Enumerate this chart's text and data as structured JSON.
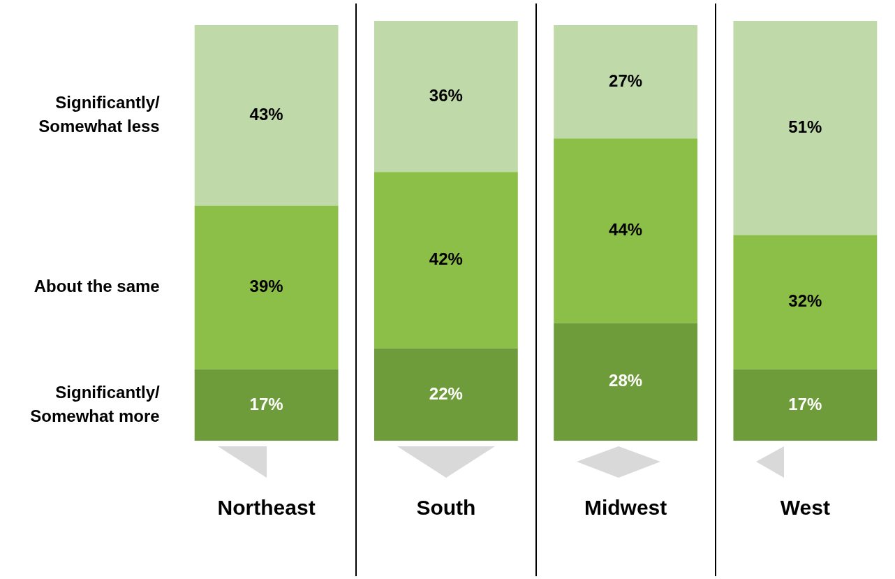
{
  "chart_data": {
    "type": "bar",
    "stacked": true,
    "legend": false,
    "categories": [
      "Northeast",
      "South",
      "Midwest",
      "West"
    ],
    "series": [
      {
        "name": "Significantly/ Somewhat more",
        "color": "#6f9c3a",
        "values": [
          17,
          22,
          28,
          17
        ],
        "value_labels": [
          "17%",
          "22%",
          "28%",
          "17%"
        ]
      },
      {
        "name": "About the same",
        "color": "#8bbf47",
        "values": [
          39,
          42,
          44,
          32
        ],
        "value_labels": [
          "39%",
          "42%",
          "44%",
          "32%"
        ]
      },
      {
        "name": "Significantly/ Somewhat less",
        "color": "#c0d9a8",
        "values": [
          43,
          36,
          27,
          51
        ],
        "value_labels": [
          "43%",
          "36%",
          "27%",
          "51%"
        ]
      }
    ]
  }
}
